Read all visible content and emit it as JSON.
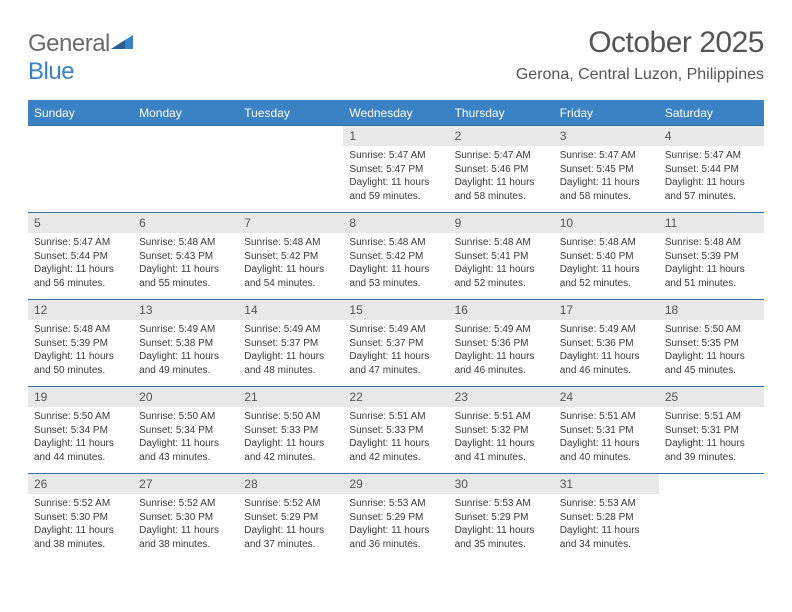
{
  "logo": {
    "general": "General",
    "blue": "Blue"
  },
  "title": {
    "month": "October 2025",
    "location": "Gerona, Central Luzon, Philippines"
  },
  "colors": {
    "header_bg": "#3b82c4",
    "week_rule": "#3b6ea0",
    "daynum_bg": "#e8e8e8",
    "text": "#3a3a3a",
    "title_text": "#555555",
    "logo_gray": "#6b6b6b",
    "logo_blue": "#3b82c4",
    "page_bg": "#ffffff"
  },
  "typography": {
    "title_month_fontsize": 30,
    "title_location_fontsize": 16,
    "weekday_fontsize": 12,
    "daynum_fontsize": 12,
    "body_fontsize": 10
  },
  "weekdays": [
    "Sunday",
    "Monday",
    "Tuesday",
    "Wednesday",
    "Thursday",
    "Friday",
    "Saturday"
  ],
  "weeks": [
    [
      null,
      null,
      null,
      {
        "n": "1",
        "sr": "5:47 AM",
        "ss": "5:47 PM",
        "dl": "11 hours and 59 minutes."
      },
      {
        "n": "2",
        "sr": "5:47 AM",
        "ss": "5:46 PM",
        "dl": "11 hours and 58 minutes."
      },
      {
        "n": "3",
        "sr": "5:47 AM",
        "ss": "5:45 PM",
        "dl": "11 hours and 58 minutes."
      },
      {
        "n": "4",
        "sr": "5:47 AM",
        "ss": "5:44 PM",
        "dl": "11 hours and 57 minutes."
      }
    ],
    [
      {
        "n": "5",
        "sr": "5:47 AM",
        "ss": "5:44 PM",
        "dl": "11 hours and 56 minutes."
      },
      {
        "n": "6",
        "sr": "5:48 AM",
        "ss": "5:43 PM",
        "dl": "11 hours and 55 minutes."
      },
      {
        "n": "7",
        "sr": "5:48 AM",
        "ss": "5:42 PM",
        "dl": "11 hours and 54 minutes."
      },
      {
        "n": "8",
        "sr": "5:48 AM",
        "ss": "5:42 PM",
        "dl": "11 hours and 53 minutes."
      },
      {
        "n": "9",
        "sr": "5:48 AM",
        "ss": "5:41 PM",
        "dl": "11 hours and 52 minutes."
      },
      {
        "n": "10",
        "sr": "5:48 AM",
        "ss": "5:40 PM",
        "dl": "11 hours and 52 minutes."
      },
      {
        "n": "11",
        "sr": "5:48 AM",
        "ss": "5:39 PM",
        "dl": "11 hours and 51 minutes."
      }
    ],
    [
      {
        "n": "12",
        "sr": "5:48 AM",
        "ss": "5:39 PM",
        "dl": "11 hours and 50 minutes."
      },
      {
        "n": "13",
        "sr": "5:49 AM",
        "ss": "5:38 PM",
        "dl": "11 hours and 49 minutes."
      },
      {
        "n": "14",
        "sr": "5:49 AM",
        "ss": "5:37 PM",
        "dl": "11 hours and 48 minutes."
      },
      {
        "n": "15",
        "sr": "5:49 AM",
        "ss": "5:37 PM",
        "dl": "11 hours and 47 minutes."
      },
      {
        "n": "16",
        "sr": "5:49 AM",
        "ss": "5:36 PM",
        "dl": "11 hours and 46 minutes."
      },
      {
        "n": "17",
        "sr": "5:49 AM",
        "ss": "5:36 PM",
        "dl": "11 hours and 46 minutes."
      },
      {
        "n": "18",
        "sr": "5:50 AM",
        "ss": "5:35 PM",
        "dl": "11 hours and 45 minutes."
      }
    ],
    [
      {
        "n": "19",
        "sr": "5:50 AM",
        "ss": "5:34 PM",
        "dl": "11 hours and 44 minutes."
      },
      {
        "n": "20",
        "sr": "5:50 AM",
        "ss": "5:34 PM",
        "dl": "11 hours and 43 minutes."
      },
      {
        "n": "21",
        "sr": "5:50 AM",
        "ss": "5:33 PM",
        "dl": "11 hours and 42 minutes."
      },
      {
        "n": "22",
        "sr": "5:51 AM",
        "ss": "5:33 PM",
        "dl": "11 hours and 42 minutes."
      },
      {
        "n": "23",
        "sr": "5:51 AM",
        "ss": "5:32 PM",
        "dl": "11 hours and 41 minutes."
      },
      {
        "n": "24",
        "sr": "5:51 AM",
        "ss": "5:31 PM",
        "dl": "11 hours and 40 minutes."
      },
      {
        "n": "25",
        "sr": "5:51 AM",
        "ss": "5:31 PM",
        "dl": "11 hours and 39 minutes."
      }
    ],
    [
      {
        "n": "26",
        "sr": "5:52 AM",
        "ss": "5:30 PM",
        "dl": "11 hours and 38 minutes."
      },
      {
        "n": "27",
        "sr": "5:52 AM",
        "ss": "5:30 PM",
        "dl": "11 hours and 38 minutes."
      },
      {
        "n": "28",
        "sr": "5:52 AM",
        "ss": "5:29 PM",
        "dl": "11 hours and 37 minutes."
      },
      {
        "n": "29",
        "sr": "5:53 AM",
        "ss": "5:29 PM",
        "dl": "11 hours and 36 minutes."
      },
      {
        "n": "30",
        "sr": "5:53 AM",
        "ss": "5:29 PM",
        "dl": "11 hours and 35 minutes."
      },
      {
        "n": "31",
        "sr": "5:53 AM",
        "ss": "5:28 PM",
        "dl": "11 hours and 34 minutes."
      },
      null
    ]
  ],
  "labels": {
    "sunrise": "Sunrise:",
    "sunset": "Sunset:",
    "daylight": "Daylight:"
  }
}
